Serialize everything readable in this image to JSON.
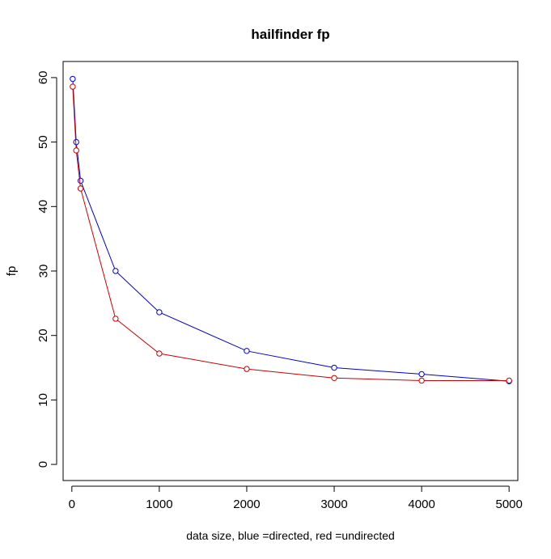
{
  "chart_data": {
    "type": "line",
    "title": "hailfinder fp",
    "xlabel": "data size,  blue =directed,  red =undirected",
    "ylabel": "fp",
    "xlim": [
      -100,
      5100
    ],
    "ylim": [
      -2.5,
      62.5
    ],
    "xticks": [
      0,
      1000,
      2000,
      3000,
      4000,
      5000
    ],
    "yticks": [
      0,
      10,
      20,
      30,
      40,
      50,
      60
    ],
    "x": [
      10,
      50,
      100,
      500,
      1000,
      2000,
      3000,
      4000,
      5000
    ],
    "series": [
      {
        "color": "#0000cc",
        "values": [
          59.8,
          50.0,
          44.0,
          30.0,
          23.6,
          17.6,
          15.0,
          14.0,
          12.9
        ]
      },
      {
        "color": "#cc0000",
        "values": [
          58.6,
          48.7,
          42.8,
          22.6,
          17.2,
          14.8,
          13.4,
          13.0,
          13.0
        ]
      }
    ]
  }
}
